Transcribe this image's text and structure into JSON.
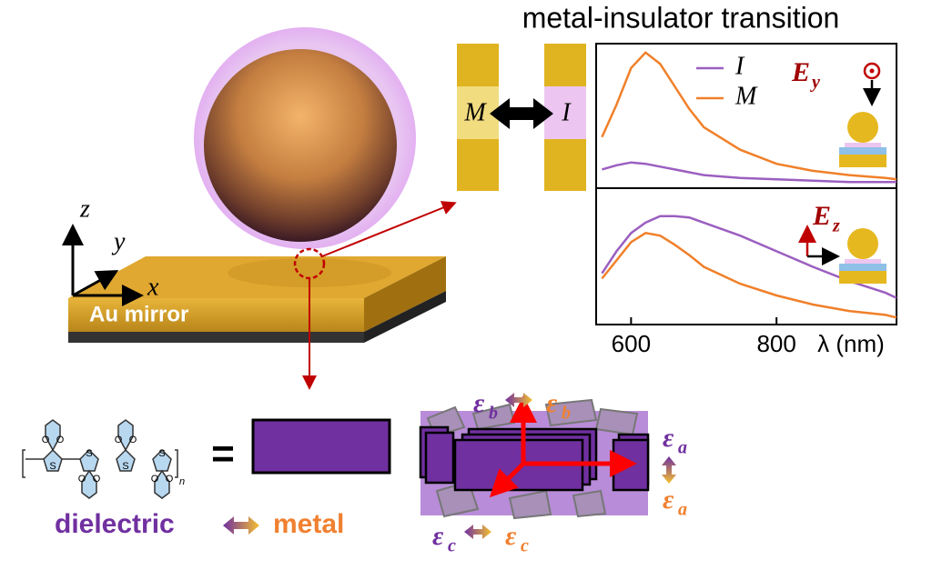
{
  "figure": {
    "title": "metal-insulator transition",
    "axes": {
      "z": "z",
      "y": "y",
      "x": "x"
    },
    "mirror": "Au mirror",
    "gap": {
      "metal": "M",
      "insulator": "I"
    },
    "molecule": {
      "sulfur": [
        "S",
        "S",
        "S",
        "S"
      ],
      "oxygen": [
        "O",
        "O",
        "O",
        "O",
        "O",
        "O",
        "O",
        "O"
      ],
      "repeat": "n"
    },
    "equals": "=",
    "dielectric": "dielectric",
    "metal": "metal",
    "epsilon": {
      "symbol": "ε",
      "b": "b",
      "a": "a",
      "c": "c"
    }
  },
  "chart_data": [
    {
      "type": "line",
      "annotation": {
        "text": "E",
        "subscript": "y"
      },
      "x": [
        560,
        580,
        600,
        620,
        640,
        660,
        680,
        700,
        750,
        800,
        850,
        900,
        950,
        965
      ],
      "xlim": [
        552,
        965
      ],
      "ylim": [
        0,
        1
      ],
      "legend": "top-center",
      "series": [
        {
          "name": "I",
          "color": "#9b5fc0",
          "values": [
            0.12,
            0.15,
            0.17,
            0.16,
            0.14,
            0.12,
            0.1,
            0.08,
            0.06,
            0.05,
            0.04,
            0.03,
            0.03,
            0.03
          ]
        },
        {
          "name": "M",
          "color": "#f0802a",
          "values": [
            0.35,
            0.58,
            0.84,
            0.95,
            0.87,
            0.71,
            0.55,
            0.42,
            0.26,
            0.16,
            0.11,
            0.08,
            0.06,
            0.05
          ]
        }
      ]
    },
    {
      "type": "line",
      "annotation": {
        "text": "E",
        "subscript": "z"
      },
      "x": [
        560,
        580,
        600,
        620,
        640,
        660,
        680,
        700,
        750,
        800,
        850,
        900,
        950,
        965
      ],
      "xlim": [
        552,
        965
      ],
      "ylim": [
        0,
        1
      ],
      "xticks": [
        600,
        800
      ],
      "xlabel": "λ (nm)",
      "series": [
        {
          "color": "#9b5fc0",
          "values": [
            0.38,
            0.55,
            0.69,
            0.77,
            0.82,
            0.82,
            0.81,
            0.77,
            0.67,
            0.55,
            0.43,
            0.32,
            0.23,
            0.19
          ]
        },
        {
          "color": "#f0802a",
          "values": [
            0.34,
            0.48,
            0.62,
            0.69,
            0.67,
            0.6,
            0.52,
            0.43,
            0.3,
            0.21,
            0.14,
            0.09,
            0.06,
            0.04
          ]
        }
      ]
    }
  ]
}
